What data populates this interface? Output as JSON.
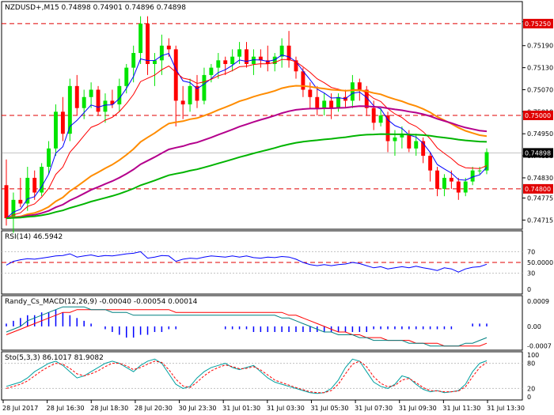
{
  "chart_data": [
    {
      "type": "candlestick",
      "title": "NZDUSD+,M15  0.74898 0.74901 0.74896 0.74898",
      "y_range": [
        0.7469,
        0.7531
      ],
      "y_ticks": [
        "0.75255",
        "0.75190",
        "0.75130",
        "0.75070",
        "0.75010",
        "0.74950",
        "0.74890",
        "0.74830",
        "0.74775",
        "0.74715"
      ],
      "x_ticks": [
        "28 Jul 2017",
        "28 Jul 16:30",
        "28 Jul 18:30",
        "28 Jul 20:30",
        "30 Jul 23:30",
        "31 Jul 01:30",
        "31 Jul 03:30",
        "31 Jul 05:30",
        "31 Jul 07:30",
        "31 Jul 09:30",
        "31 Jul 11:30",
        "31 Jul 13:30"
      ],
      "price_labels": {
        "top": "0.75250",
        "mid": "0.75000",
        "current": "0.74898",
        "low": "0.74800"
      },
      "colors": {
        "bull": "#00e400",
        "bear": "#ff0000",
        "ema_blue": "#0000ff",
        "ema_red": "#ff0000",
        "ema_orange": "#ff8c00",
        "ema_purple": "#b4008c",
        "ema_green": "#00b400",
        "level": "#e00000"
      },
      "candles": [
        [
          0.7481,
          0.7488,
          0.747,
          0.7472
        ],
        [
          0.7472,
          0.7479,
          0.7468,
          0.7477
        ],
        [
          0.7477,
          0.7483,
          0.7475,
          0.7476
        ],
        [
          0.7476,
          0.7486,
          0.7474,
          0.7483
        ],
        [
          0.7483,
          0.7485,
          0.7477,
          0.7479
        ],
        [
          0.7479,
          0.7487,
          0.7478,
          0.7486
        ],
        [
          0.7486,
          0.7493,
          0.7484,
          0.7491
        ],
        [
          0.7491,
          0.7503,
          0.7489,
          0.7501
        ],
        [
          0.7501,
          0.7505,
          0.7493,
          0.7495
        ],
        [
          0.7495,
          0.751,
          0.7493,
          0.7508
        ],
        [
          0.7508,
          0.7511,
          0.75,
          0.7502
        ],
        [
          0.7502,
          0.7507,
          0.7499,
          0.7505
        ],
        [
          0.7505,
          0.7509,
          0.7502,
          0.7507
        ],
        [
          0.7507,
          0.7508,
          0.75,
          0.7501
        ],
        [
          0.7501,
          0.7506,
          0.7498,
          0.7504
        ],
        [
          0.7504,
          0.7507,
          0.7502,
          0.7503
        ],
        [
          0.7503,
          0.751,
          0.7501,
          0.7508
        ],
        [
          0.7508,
          0.7514,
          0.7506,
          0.7513
        ],
        [
          0.7513,
          0.7519,
          0.7509,
          0.7517
        ],
        [
          0.7517,
          0.7527,
          0.7514,
          0.7525
        ],
        [
          0.7525,
          0.7527,
          0.7511,
          0.7514
        ],
        [
          0.7514,
          0.7517,
          0.7508,
          0.7515
        ],
        [
          0.7515,
          0.7522,
          0.7511,
          0.7519
        ],
        [
          0.7519,
          0.7521,
          0.7516,
          0.7518
        ],
        [
          0.7518,
          0.7519,
          0.7497,
          0.7504
        ],
        [
          0.7504,
          0.7508,
          0.7499,
          0.7503
        ],
        [
          0.7503,
          0.751,
          0.7501,
          0.7508
        ],
        [
          0.7508,
          0.7511,
          0.7502,
          0.7504
        ],
        [
          0.7504,
          0.7513,
          0.7503,
          0.7511
        ],
        [
          0.7511,
          0.7514,
          0.7509,
          0.7513
        ],
        [
          0.7513,
          0.7517,
          0.751,
          0.7515
        ],
        [
          0.7515,
          0.7516,
          0.7511,
          0.7514
        ],
        [
          0.7514,
          0.7518,
          0.7512,
          0.7516
        ],
        [
          0.7516,
          0.752,
          0.7514,
          0.7518
        ],
        [
          0.7518,
          0.752,
          0.7513,
          0.7514
        ],
        [
          0.7514,
          0.7518,
          0.7511,
          0.7516
        ],
        [
          0.7516,
          0.7518,
          0.7513,
          0.7515
        ],
        [
          0.7515,
          0.7519,
          0.7512,
          0.7514
        ],
        [
          0.7514,
          0.7517,
          0.7512,
          0.7516
        ],
        [
          0.7516,
          0.7521,
          0.7513,
          0.7519
        ],
        [
          0.7519,
          0.7523,
          0.7513,
          0.7515
        ],
        [
          0.7515,
          0.7516,
          0.751,
          0.7512
        ],
        [
          0.7512,
          0.7513,
          0.7505,
          0.7507
        ],
        [
          0.7507,
          0.7509,
          0.7502,
          0.7505
        ],
        [
          0.7505,
          0.7508,
          0.75,
          0.7502
        ],
        [
          0.7502,
          0.7506,
          0.75,
          0.7504
        ],
        [
          0.7504,
          0.7506,
          0.7499,
          0.7502
        ],
        [
          0.7502,
          0.7506,
          0.7501,
          0.7505
        ],
        [
          0.7505,
          0.7507,
          0.7502,
          0.7504
        ],
        [
          0.7504,
          0.7511,
          0.7502,
          0.7509
        ],
        [
          0.7509,
          0.751,
          0.7504,
          0.7507
        ],
        [
          0.7507,
          0.7508,
          0.75,
          0.7502
        ],
        [
          0.7502,
          0.7504,
          0.7496,
          0.7498
        ],
        [
          0.7498,
          0.7502,
          0.7497,
          0.75
        ],
        [
          0.75,
          0.7501,
          0.749,
          0.7493
        ],
        [
          0.7493,
          0.7496,
          0.7489,
          0.7494
        ],
        [
          0.7494,
          0.7497,
          0.7491,
          0.7495
        ],
        [
          0.7495,
          0.7496,
          0.749,
          0.7491
        ],
        [
          0.7491,
          0.7495,
          0.7489,
          0.7493
        ],
        [
          0.7493,
          0.7494,
          0.7487,
          0.7489
        ],
        [
          0.7489,
          0.749,
          0.7482,
          0.7485
        ],
        [
          0.7485,
          0.7486,
          0.7478,
          0.748
        ],
        [
          0.748,
          0.7484,
          0.7478,
          0.7483
        ],
        [
          0.7483,
          0.7485,
          0.748,
          0.7482
        ],
        [
          0.7482,
          0.7483,
          0.7477,
          0.7479
        ],
        [
          0.7479,
          0.7483,
          0.7478,
          0.7482
        ],
        [
          0.7482,
          0.7486,
          0.7481,
          0.7485
        ],
        [
          0.7485,
          0.7486,
          0.7484,
          0.7485
        ],
        [
          0.7485,
          0.7491,
          0.7484,
          0.749
        ]
      ],
      "ema_series": [
        {
          "color": "#0000ff",
          "period": 5
        },
        {
          "color": "#ff0000",
          "period": 10
        },
        {
          "color": "#ff8c00",
          "period": 34
        },
        {
          "color": "#b4008c",
          "period": 55
        },
        {
          "color": "#00b400",
          "period": 100
        }
      ]
    },
    {
      "type": "line",
      "title": "RSI(14) 46.5942",
      "y_range": [
        0,
        100
      ],
      "levels": [
        70,
        50,
        30
      ],
      "y_ticks": [
        "70",
        "50.0000",
        "30",
        "0"
      ],
      "values": [
        45,
        52,
        55,
        57,
        56,
        58,
        60,
        62,
        63,
        66,
        60,
        62,
        64,
        61,
        63,
        62,
        64,
        66,
        67,
        70,
        58,
        60,
        63,
        62,
        52,
        56,
        58,
        57,
        60,
        62,
        61,
        60,
        62,
        60,
        62,
        59,
        58,
        60,
        59,
        61,
        60,
        56,
        50,
        46,
        44,
        46,
        44,
        46,
        47,
        50,
        48,
        44,
        40,
        42,
        38,
        40,
        42,
        40,
        43,
        40,
        38,
        35,
        40,
        38,
        32,
        38,
        41,
        42,
        46.6
      ],
      "line_color": "#0000ff"
    },
    {
      "type": "line",
      "title": "Randy_Cs_MACD(12,26,9) -0.00040 -0.00054 0.00014",
      "y_range": [
        -0.00085,
        0.0011
      ],
      "y_ticks": [
        "0.0009",
        "0.00",
        "-0.0007"
      ],
      "histogram": [
        0.0001,
        0.0002,
        0.0003,
        0.0004,
        0.0004,
        0.0005,
        0.0005,
        0.0006,
        0.0005,
        0.0004,
        0.0003,
        0.0002,
        0.0001,
        0.0,
        -0.0001,
        -0.0002,
        -0.0003,
        -0.0004,
        -0.0004,
        -0.0003,
        -0.0003,
        -0.0002,
        -0.0002,
        -0.0001,
        -0.0001,
        0.0,
        0.0,
        0.0,
        0.0,
        0.0,
        0.0,
        -0.0001,
        -0.0001,
        -0.0001,
        -0.0001,
        -0.0002,
        -0.0002,
        -0.0002,
        -0.0002,
        -0.0002,
        -0.0002,
        -0.0002,
        -0.0002,
        -0.0002,
        -0.0002,
        -0.0002,
        -0.0002,
        -0.0002,
        -0.0002,
        -0.0002,
        -0.0002,
        -0.0002,
        -0.0001,
        -0.0001,
        -0.0001,
        -0.0001,
        -0.0001,
        -0.0001,
        -0.0001,
        -0.0001,
        -0.0001,
        -0.0001,
        -0.0001,
        -0.0001,
        0.0,
        0.0,
        0.0001,
        0.0001,
        0.0001
      ],
      "signal_line": [
        -0.0003,
        -0.0002,
        -0.0001,
        0.0,
        0.0001,
        0.0002,
        0.0003,
        0.0004,
        0.0005,
        0.0005,
        0.0006,
        0.0006,
        0.0006,
        0.0006,
        0.0006,
        0.0006,
        0.0006,
        0.0006,
        0.0006,
        0.0006,
        0.0006,
        0.0006,
        0.0006,
        0.0006,
        0.0005,
        0.0005,
        0.0005,
        0.0005,
        0.0005,
        0.0005,
        0.0005,
        0.0005,
        0.0005,
        0.0005,
        0.0005,
        0.0005,
        0.0005,
        0.0005,
        0.0005,
        0.0005,
        0.0004,
        0.0004,
        0.0003,
        0.0002,
        0.0001,
        0.0,
        -0.0001,
        -0.0002,
        -0.0002,
        -0.0003,
        -0.0003,
        -0.0004,
        -0.0004,
        -0.0004,
        -0.0005,
        -0.0005,
        -0.0005,
        -0.0005,
        -0.0006,
        -0.0006,
        -0.0006,
        -0.0006,
        -0.0007,
        -0.0007,
        -0.0007,
        -0.0007,
        -0.0007,
        -0.0007,
        -0.0006
      ],
      "macd_line": [
        -0.0002,
        -0.0001,
        0.0,
        0.0002,
        0.0003,
        0.0004,
        0.0005,
        0.0006,
        0.0007,
        0.0007,
        0.0007,
        0.0007,
        0.0006,
        0.0006,
        0.0006,
        0.0005,
        0.0005,
        0.0005,
        0.0004,
        0.0004,
        0.0004,
        0.0004,
        0.0004,
        0.0004,
        0.0004,
        0.0004,
        0.0004,
        0.0004,
        0.0004,
        0.0004,
        0.0004,
        0.0004,
        0.0004,
        0.0004,
        0.0004,
        0.0004,
        0.0004,
        0.0004,
        0.0004,
        0.0003,
        0.0003,
        0.0002,
        0.0001,
        0.0,
        -0.0001,
        -0.0002,
        -0.0002,
        -0.0003,
        -0.0003,
        -0.0003,
        -0.0004,
        -0.0004,
        -0.0005,
        -0.0005,
        -0.0005,
        -0.0005,
        -0.0005,
        -0.0006,
        -0.0006,
        -0.0006,
        -0.0007,
        -0.0007,
        -0.0007,
        -0.0007,
        -0.0007,
        -0.0006,
        -0.0006,
        -0.0005,
        -0.0004
      ],
      "hist_color": "#0000ff",
      "signal_color": "#ff0000",
      "macd_color": "#008080"
    },
    {
      "type": "line",
      "title": "Sto(5,3,3) 86.1017 81.9082",
      "y_range": [
        0,
        100
      ],
      "levels": [
        80,
        20
      ],
      "y_ticks": [
        "100",
        "80",
        "20",
        "0"
      ],
      "main_line": [
        25,
        30,
        35,
        45,
        60,
        70,
        80,
        85,
        75,
        60,
        45,
        50,
        60,
        70,
        80,
        85,
        80,
        70,
        60,
        75,
        85,
        90,
        80,
        55,
        30,
        20,
        25,
        45,
        60,
        70,
        75,
        80,
        70,
        65,
        70,
        75,
        60,
        45,
        35,
        30,
        25,
        20,
        15,
        10,
        8,
        10,
        20,
        40,
        70,
        90,
        85,
        60,
        35,
        25,
        20,
        30,
        50,
        45,
        30,
        18,
        12,
        15,
        10,
        12,
        15,
        30,
        60,
        80,
        86.1
      ],
      "signal_line": [
        20,
        25,
        30,
        38,
        50,
        62,
        72,
        80,
        78,
        68,
        55,
        50,
        55,
        62,
        72,
        80,
        80,
        74,
        65,
        70,
        78,
        85,
        82,
        65,
        42,
        26,
        22,
        35,
        50,
        62,
        70,
        76,
        72,
        67,
        68,
        72,
        64,
        52,
        40,
        34,
        28,
        22,
        17,
        12,
        10,
        10,
        15,
        30,
        55,
        78,
        85,
        72,
        48,
        32,
        24,
        27,
        40,
        44,
        34,
        22,
        15,
        14,
        12,
        12,
        14,
        24,
        48,
        70,
        81.9
      ],
      "main_color": "#00a0a0",
      "signal_color": "#ff0000"
    }
  ]
}
